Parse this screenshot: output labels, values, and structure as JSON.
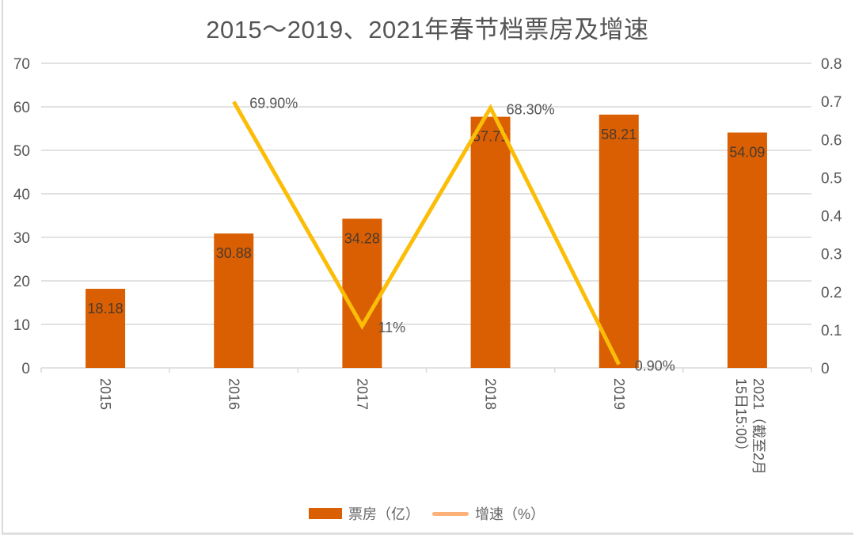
{
  "title": "2015～2019、2021年春节档票房及增速",
  "legend": {
    "bar_label": "票房（亿）",
    "line_label": "增速（%）"
  },
  "colors": {
    "bar": "#d95f02",
    "line": "#fbbd08",
    "legend_line": "#fbb178",
    "grid": "#d9d9d9",
    "text": "#555555"
  },
  "chart_data": {
    "type": "bar+line",
    "title": "2015～2019、2021年春节档票房及增速",
    "categories": [
      "2015",
      "2016",
      "2017",
      "2018",
      "2019",
      "2021（截至2月15日15:00）"
    ],
    "series": [
      {
        "name": "票房（亿）",
        "type": "bar",
        "axis": "left",
        "values": [
          18.18,
          30.88,
          34.28,
          57.71,
          58.21,
          54.09
        ],
        "labels": [
          "18.18",
          "30.88",
          "34.28",
          "57.71",
          "58.21",
          "54.09"
        ]
      },
      {
        "name": "增速（%）",
        "type": "line",
        "axis": "right",
        "values": [
          null,
          0.699,
          0.11,
          0.683,
          0.009,
          null
        ],
        "labels": [
          "",
          "69.90%",
          "11%",
          "68.30%",
          "0.90%",
          ""
        ]
      }
    ],
    "left_axis": {
      "ylim": [
        0,
        70
      ],
      "ticks": [
        "0",
        "10",
        "20",
        "30",
        "40",
        "50",
        "60",
        "70"
      ]
    },
    "right_axis": {
      "ylim": [
        0,
        0.8
      ],
      "ticks": [
        "0",
        "0.1",
        "0.2",
        "0.3",
        "0.4",
        "0.5",
        "0.6",
        "0.7",
        "0.8"
      ]
    },
    "grid": true,
    "legend_position": "bottom",
    "xlabel_rotation": 90
  }
}
